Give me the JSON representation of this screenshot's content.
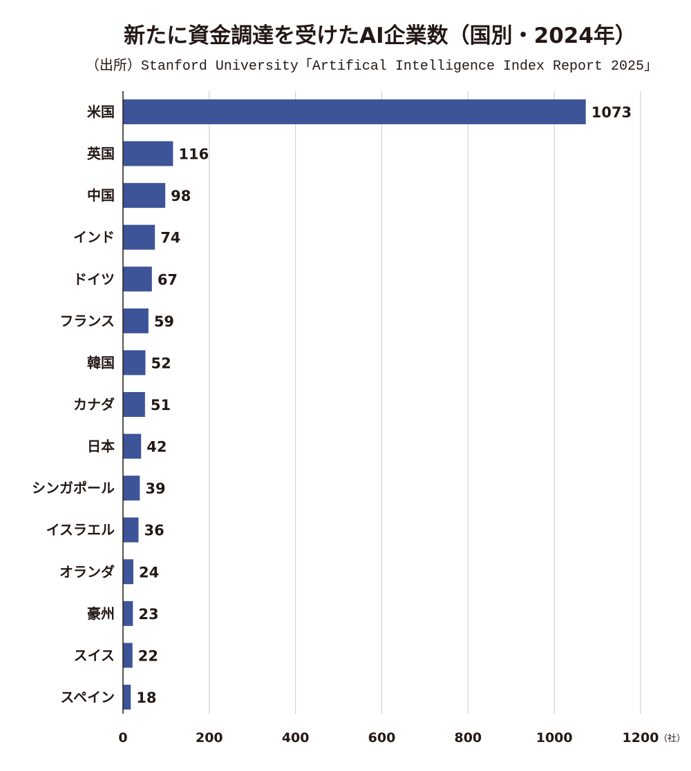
{
  "chart_data": {
    "type": "bar",
    "orientation": "horizontal",
    "title": "新たに資金調達を受けたAI企業数（国別・2024年）",
    "subtitle": "（出所）Stanford University「Artifical Intelligence Index Report 2025」",
    "categories": [
      "米国",
      "英国",
      "中国",
      "インド",
      "ドイツ",
      "フランス",
      "韓国",
      "カナダ",
      "日本",
      "シンガポール",
      "イスラエル",
      "オランダ",
      "豪州",
      "スイス",
      "スペイン"
    ],
    "values": [
      1073,
      116,
      98,
      74,
      67,
      59,
      52,
      51,
      42,
      39,
      36,
      24,
      23,
      22,
      18
    ],
    "xlim": [
      0,
      1200
    ],
    "xticks": [
      0,
      200,
      400,
      600,
      800,
      1000,
      1200
    ],
    "xtick_labels": [
      "0",
      "200",
      "400",
      "600",
      "800",
      "1000",
      "1200"
    ],
    "unit_label": "（社）",
    "grid": true,
    "bar_color": "#3d5499"
  }
}
